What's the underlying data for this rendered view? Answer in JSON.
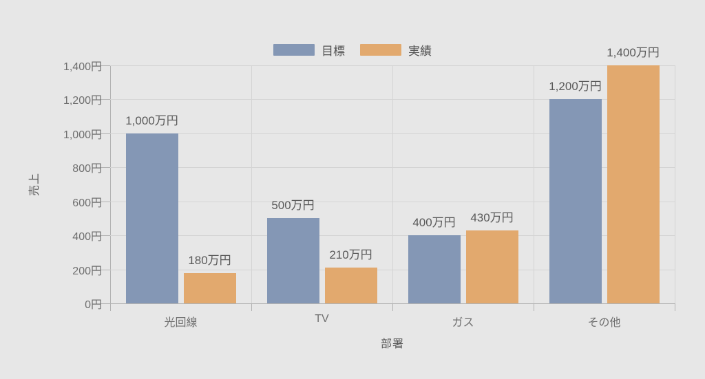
{
  "chart_data": {
    "type": "bar",
    "title": "",
    "categories": [
      "光回線",
      "TV",
      "ガス",
      "その他"
    ],
    "series": [
      {
        "name": "目標",
        "color": "#8497b5",
        "values": [
          1000,
          500,
          400,
          1200
        ],
        "labels": [
          "1,000万円",
          "500万円",
          "400万円",
          "1,200万円"
        ]
      },
      {
        "name": "実績",
        "color": "#e2a96e",
        "values": [
          180,
          210,
          430,
          1400
        ],
        "labels": [
          "180万円",
          "210万円",
          "430万円",
          "1,400万円"
        ]
      }
    ],
    "xlabel": "部署",
    "ylabel": "売上",
    "ylim": [
      0,
      1400
    ],
    "ytick_step": 200,
    "ytick_labels": [
      "0円",
      "200円",
      "400円",
      "600円",
      "800円",
      "1,000円",
      "1,200円",
      "1,400円"
    ],
    "legend_position": "top-center",
    "grid": true,
    "background_color": "#e7e7e7",
    "gridline_color": "#d4d4d4",
    "axis_color": "#b2b2b2",
    "label_color": "#595959",
    "tick_label_color": "#6f6f6f"
  }
}
